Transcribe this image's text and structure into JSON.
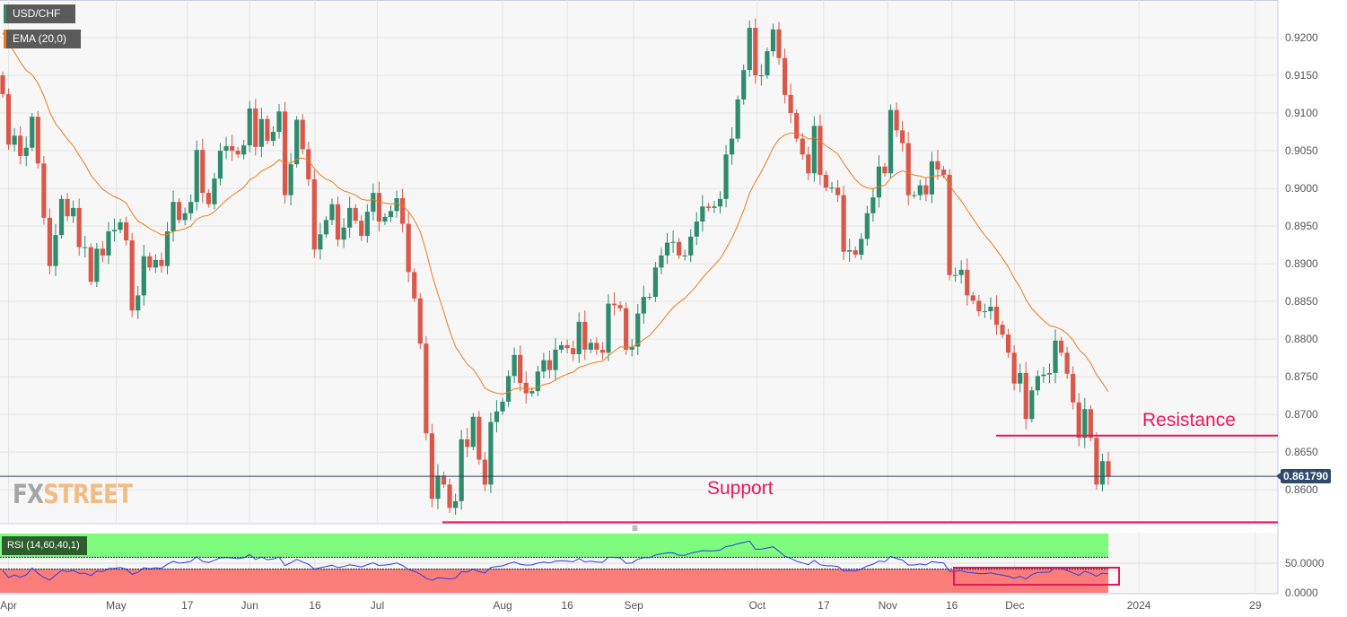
{
  "header": {
    "pair": "USD/CHF",
    "indicator": "EMA (20,0)"
  },
  "rsi_panel": {
    "label": "RSI (14,60,40,1)",
    "axis": [
      "50.0000",
      "0.0000"
    ]
  },
  "annotations": {
    "support": "Support",
    "resistance": "Resistance"
  },
  "current_price": "0.861790",
  "logo": {
    "fx": "FX",
    "street": "STREET"
  },
  "colors": {
    "up": "#2e8b6e",
    "down": "#d9584a",
    "ema": "#f07a1a",
    "annotation": "#e8175d",
    "rsi_line": "#2b3fe0",
    "rsi_high": "#7dfc7d",
    "rsi_low": "#fa7d7a"
  },
  "chart_data": {
    "type": "candlestick",
    "title": "USD/CHF",
    "ylim": [
      0.8557,
      0.925
    ],
    "yticks": [
      "0.9200",
      "0.9150",
      "0.9100",
      "0.9050",
      "0.9000",
      "0.8950",
      "0.8900",
      "0.8850",
      "0.8800",
      "0.8750",
      "0.8700",
      "0.8650",
      "0.8600"
    ],
    "xticks": [
      "Apr",
      "May",
      "17",
      "Jun",
      "16",
      "Jul",
      "Aug",
      "16",
      "Sep",
      "Oct",
      "17",
      "Nov",
      "16",
      "Dec",
      "2024",
      "29"
    ],
    "first_open": 0.915,
    "close": [
      0.9125,
      0.9058,
      0.907,
      0.9043,
      0.9054,
      0.9095,
      0.9033,
      0.8961,
      0.8897,
      0.8938,
      0.8986,
      0.8963,
      0.8974,
      0.8922,
      0.8922,
      0.8876,
      0.892,
      0.8911,
      0.8943,
      0.8945,
      0.8955,
      0.8931,
      0.8838,
      0.8858,
      0.891,
      0.8895,
      0.8905,
      0.8897,
      0.8943,
      0.8982,
      0.8958,
      0.8967,
      0.8982,
      0.9051,
      0.8994,
      0.8979,
      0.9013,
      0.905,
      0.9056,
      0.905,
      0.9045,
      0.9057,
      0.9106,
      0.9055,
      0.9092,
      0.9063,
      0.9075,
      0.9102,
      0.8991,
      0.9032,
      0.9091,
      0.9052,
      0.9012,
      0.8919,
      0.8939,
      0.8958,
      0.8979,
      0.8932,
      0.8948,
      0.8974,
      0.8957,
      0.8937,
      0.8969,
      0.8994,
      0.8956,
      0.8962,
      0.897,
      0.8987,
      0.8953,
      0.8889,
      0.8854,
      0.8794,
      0.8675,
      0.8588,
      0.8619,
      0.8607,
      0.8576,
      0.8585,
      0.8667,
      0.8657,
      0.8697,
      0.864,
      0.8607,
      0.869,
      0.8704,
      0.8717,
      0.8751,
      0.8779,
      0.8742,
      0.8728,
      0.8731,
      0.8757,
      0.8772,
      0.8759,
      0.8786,
      0.8792,
      0.8788,
      0.878,
      0.8823,
      0.8786,
      0.8795,
      0.8786,
      0.8782,
      0.8847,
      0.8845,
      0.8841,
      0.8786,
      0.879,
      0.8834,
      0.8856,
      0.8856,
      0.8895,
      0.8911,
      0.8928,
      0.8929,
      0.8911,
      0.8911,
      0.8936,
      0.8956,
      0.8976,
      0.8974,
      0.8976,
      0.8986,
      0.9045,
      0.9066,
      0.9118,
      0.9157,
      0.9213,
      0.915,
      0.915,
      0.9182,
      0.9211,
      0.9173,
      0.9124,
      0.91,
      0.9066,
      0.9045,
      0.902,
      0.9083,
      0.9018,
      0.9001,
      0.9001,
      0.8991,
      0.8916,
      0.8918,
      0.8912,
      0.8933,
      0.8967,
      0.8988,
      0.9029,
      0.902,
      0.9104,
      0.9077,
      0.906,
      0.8991,
      0.8991,
      0.9004,
      0.8992,
      0.9036,
      0.9025,
      0.9018,
      0.8885,
      0.8885,
      0.8892,
      0.8858,
      0.8851,
      0.8837,
      0.8837,
      0.8843,
      0.8819,
      0.8806,
      0.8782,
      0.8741,
      0.8755,
      0.8694,
      0.8732,
      0.8751,
      0.8753,
      0.8755,
      0.8798,
      0.8782,
      0.8754,
      0.8716,
      0.8669,
      0.8707,
      0.8669,
      0.8607,
      0.8638,
      0.86179
    ],
    "ema_period": 20,
    "ema_seed": 0.9215,
    "rsi_period": 14,
    "rsi_levels": [
      60,
      40
    ],
    "support_level": 0.8557,
    "resistance_level": 0.8672
  }
}
